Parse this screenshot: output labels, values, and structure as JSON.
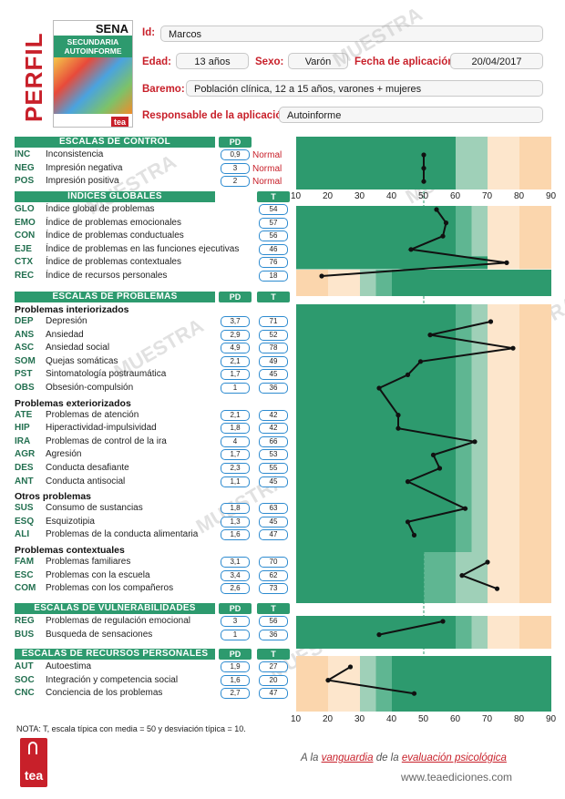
{
  "header": {
    "title": "PERFIL",
    "cover": {
      "brand": "SENA",
      "line1": "SECUNDARIA",
      "line2": "AUTOINFORME",
      "publisher": "tea"
    },
    "id_label": "Id:",
    "id_value": "Marcos",
    "age_label": "Edad:",
    "age_value": "13 años",
    "sex_label": "Sexo:",
    "sex_value": "Varón",
    "date_label": "Fecha de aplicación:",
    "date_value": "20/04/2017",
    "baremo_label": "Baremo:",
    "baremo_value": "Población clínica, 12 a 15 años, varones + mujeres",
    "resp_label": "Responsable de la aplicación:",
    "resp_value": "Autoinforme"
  },
  "watermark": "MUESTRA",
  "colors": {
    "accent": "#c8202a",
    "green": "#2d9a6e",
    "box_border": "#2d8bd0",
    "zone_dark": "#2d9a6e",
    "zone_mid": "#5fb692",
    "zone_light": "#9fd0b8",
    "zone_pale": "#d3ebdf",
    "zone_orange_light": "#fde6cc",
    "zone_orange": "#fbd6ad"
  },
  "axis": {
    "min": 10,
    "max": 90,
    "ticks": [
      10,
      20,
      30,
      40,
      50,
      60,
      70,
      80,
      90
    ]
  },
  "sections": [
    {
      "title": "ESCALAS DE CONTROL",
      "pd_label": "PD",
      "t_label": "",
      "groups": [
        {
          "title": "",
          "items": [
            {
              "abbr": "INC",
              "label": "Inconsistencia",
              "pd": "0,9",
              "t": null,
              "status": "Normal"
            },
            {
              "abbr": "NEG",
              "label": "Impresión negativa",
              "pd": "3",
              "t": null,
              "status": "Normal"
            },
            {
              "abbr": "POS",
              "label": "Impresión positiva",
              "pd": "2",
              "t": null,
              "status": "Normal"
            }
          ]
        }
      ]
    },
    {
      "title": "ÍNDICES GLOBALES",
      "pd_label": "",
      "t_label": "T",
      "groups": [
        {
          "title": "",
          "items": [
            {
              "abbr": "GLO",
              "label": "Índice global de problemas",
              "pd": null,
              "t": "54"
            },
            {
              "abbr": "EMO",
              "label": "Índice de problemas emocionales",
              "pd": null,
              "t": "57"
            },
            {
              "abbr": "CON",
              "label": "Índice de problemas conductuales",
              "pd": null,
              "t": "56"
            },
            {
              "abbr": "EJE",
              "label": "Índice de problemas en las funciones ejecutivas",
              "pd": null,
              "t": "46"
            },
            {
              "abbr": "CTX",
              "label": "Índice de problemas contextuales",
              "pd": null,
              "t": "76"
            },
            {
              "abbr": "REC",
              "label": "Índice de recursos personales",
              "pd": null,
              "t": "18"
            }
          ]
        }
      ]
    },
    {
      "title": "ESCALAS DE PROBLEMAS",
      "pd_label": "PD",
      "t_label": "T",
      "groups": [
        {
          "title": "Problemas interiorizados",
          "items": [
            {
              "abbr": "DEP",
              "label": "Depresión",
              "pd": "3,7",
              "t": "71"
            },
            {
              "abbr": "ANS",
              "label": "Ansiedad",
              "pd": "2,9",
              "t": "52"
            },
            {
              "abbr": "ASC",
              "label": "Ansiedad social",
              "pd": "4,9",
              "t": "78"
            },
            {
              "abbr": "SOM",
              "label": "Quejas somáticas",
              "pd": "2,1",
              "t": "49"
            },
            {
              "abbr": "PST",
              "label": "Sintomatología postraumática",
              "pd": "1,7",
              "t": "45"
            },
            {
              "abbr": "OBS",
              "label": "Obsesión-compulsión",
              "pd": "1",
              "t": "36"
            }
          ]
        },
        {
          "title": "Problemas exteriorizados",
          "items": [
            {
              "abbr": "ATE",
              "label": "Problemas de atención",
              "pd": "2,1",
              "t": "42"
            },
            {
              "abbr": "HIP",
              "label": "Hiperactividad-impulsividad",
              "pd": "1,8",
              "t": "42"
            },
            {
              "abbr": "IRA",
              "label": "Problemas de control de la ira",
              "pd": "4",
              "t": "66"
            },
            {
              "abbr": "AGR",
              "label": "Agresión",
              "pd": "1,7",
              "t": "53"
            },
            {
              "abbr": "DES",
              "label": "Conducta desafiante",
              "pd": "2,3",
              "t": "55"
            },
            {
              "abbr": "ANT",
              "label": "Conducta antisocial",
              "pd": "1,1",
              "t": "45"
            }
          ]
        },
        {
          "title": "Otros problemas",
          "items": [
            {
              "abbr": "SUS",
              "label": "Consumo de sustancias",
              "pd": "1,8",
              "t": "63"
            },
            {
              "abbr": "ESQ",
              "label": "Esquizotipia",
              "pd": "1,3",
              "t": "45"
            },
            {
              "abbr": "ALI",
              "label": "Problemas de la conducta alimentaria",
              "pd": "1,6",
              "t": "47"
            }
          ]
        },
        {
          "title": "Problemas contextuales",
          "items": [
            {
              "abbr": "FAM",
              "label": "Problemas familiares",
              "pd": "3,1",
              "t": "70"
            },
            {
              "abbr": "ESC",
              "label": "Problemas con la escuela",
              "pd": "3,4",
              "t": "62"
            },
            {
              "abbr": "COM",
              "label": "Problemas con los compañeros",
              "pd": "2,6",
              "t": "73"
            }
          ]
        }
      ]
    },
    {
      "title": "ESCALAS DE VULNERABILIDADES",
      "pd_label": "PD",
      "t_label": "T",
      "groups": [
        {
          "title": "",
          "items": [
            {
              "abbr": "REG",
              "label": "Problemas de regulación emocional",
              "pd": "3",
              "t": "56"
            },
            {
              "abbr": "BUS",
              "label": "Busqueda de sensaciones",
              "pd": "1",
              "t": "36"
            }
          ]
        }
      ]
    },
    {
      "title": "ESCALAS DE RECURSOS PERSONALES",
      "pd_label": "PD",
      "t_label": "T",
      "groups": [
        {
          "title": "",
          "items": [
            {
              "abbr": "AUT",
              "label": "Autoestima",
              "pd": "1,9",
              "t": "27"
            },
            {
              "abbr": "SOC",
              "label": "Integración y competencia social",
              "pd": "1,6",
              "t": "20"
            },
            {
              "abbr": "CNC",
              "label": "Conciencia de los problemas",
              "pd": "2,7",
              "t": "47"
            }
          ]
        }
      ]
    }
  ],
  "chart_data": {
    "type": "line",
    "x_axis_ticks": [
      10,
      20,
      30,
      40,
      50,
      60,
      70,
      80,
      90
    ],
    "xlim": [
      10,
      90
    ],
    "reference_line": 50,
    "series": [
      {
        "values": [
          50,
          50,
          50
        ]
      },
      {
        "values": [
          54,
          57,
          56,
          46,
          76,
          18
        ]
      },
      {
        "values": [
          71,
          52,
          78,
          49,
          45,
          36,
          42,
          42,
          66,
          53,
          55,
          45,
          63,
          45,
          47
        ]
      },
      {
        "values": [
          70,
          62,
          73
        ]
      },
      {
        "values": [
          56,
          36
        ]
      },
      {
        "values": [
          27,
          20,
          47
        ]
      }
    ]
  },
  "footer": {
    "note": "NOTA: T, escala típica con media = 50 y desviación típica = 10.",
    "logo_text": "tea",
    "slogan_a": "A la ",
    "slogan_b": "vanguardia",
    "slogan_c": " de la ",
    "slogan_d": "evaluación psicológica",
    "url": "www.teaediciones.com"
  }
}
